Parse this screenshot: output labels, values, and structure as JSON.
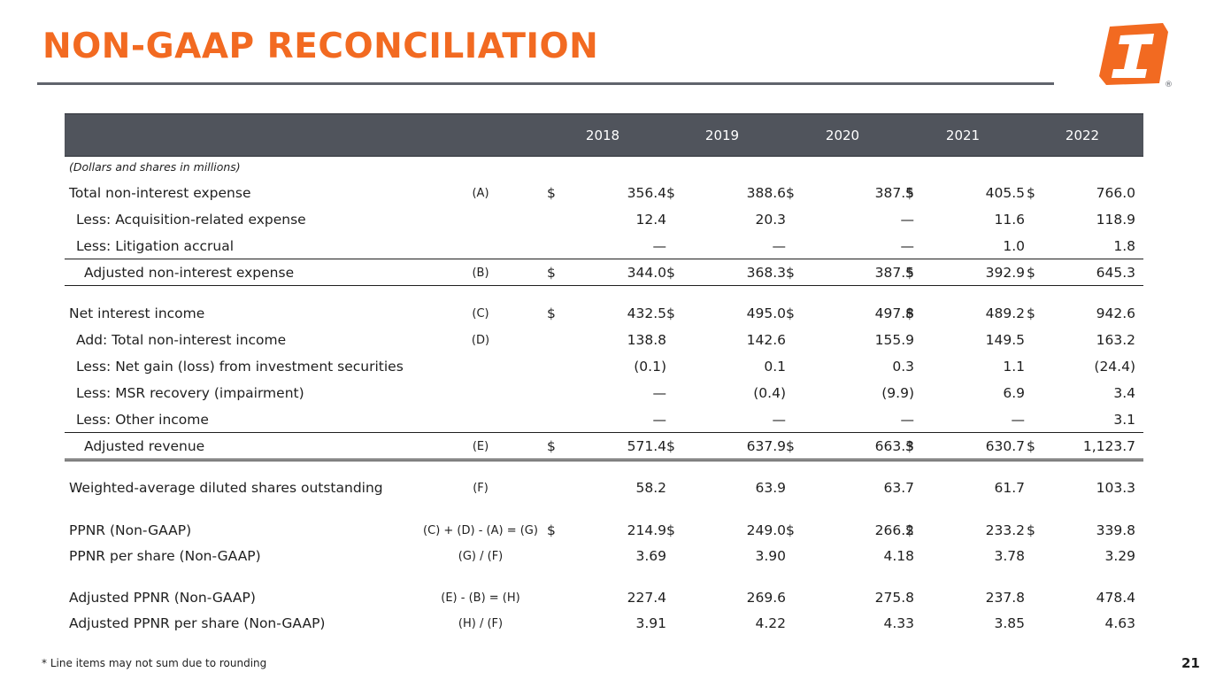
{
  "title": "NON-GAAP RECONCILIATION",
  "logo": {
    "icon": "company-logo-icon",
    "registered_mark": "®",
    "brand_color": "#f26a21"
  },
  "columns": [
    "2018",
    "2019",
    "2020",
    "2021",
    "2022"
  ],
  "units_note": "(Dollars and shares in millions)",
  "rows": [
    {
      "label": "Total non-interest expense",
      "indent": 0,
      "ref": "(A)",
      "dollar": true,
      "values": [
        "356.4",
        "388.6",
        "387.5",
        "405.5",
        "766.0"
      ]
    },
    {
      "label": "Less: Acquisition-related expense",
      "indent": 1,
      "ref": "",
      "dollar": false,
      "values": [
        "12.4",
        "20.3",
        "—",
        "11.6",
        "118.9"
      ]
    },
    {
      "label": "Less: Litigation accrual",
      "indent": 1,
      "ref": "",
      "dollar": false,
      "values": [
        "—",
        "—",
        "—",
        "1.0",
        "1.8"
      ]
    },
    {
      "label": "Adjusted non-interest expense",
      "indent": 2,
      "ref": "(B)",
      "dollar": true,
      "values": [
        "344.0",
        "368.3",
        "387.5",
        "392.9",
        "645.3"
      ]
    },
    {
      "label": "Net interest income",
      "indent": 0,
      "ref": "(C)",
      "dollar": true,
      "values": [
        "432.5",
        "495.0",
        "497.8",
        "489.2",
        "942.6"
      ]
    },
    {
      "label": "Add: Total non-interest income",
      "indent": 1,
      "ref": "(D)",
      "dollar": false,
      "values": [
        "138.8",
        "142.6",
        "155.9",
        "149.5",
        "163.2"
      ]
    },
    {
      "label": "Less: Net gain (loss) from investment securities",
      "indent": 1,
      "ref": "",
      "dollar": false,
      "values": [
        "(0.1)",
        "0.1",
        "0.3",
        "1.1",
        "(24.4)"
      ]
    },
    {
      "label": "Less: MSR recovery (impairment)",
      "indent": 1,
      "ref": "",
      "dollar": false,
      "values": [
        "—",
        "(0.4)",
        "(9.9)",
        "6.9",
        "3.4"
      ]
    },
    {
      "label": "Less: Other income",
      "indent": 1,
      "ref": "",
      "dollar": false,
      "values": [
        "—",
        "—",
        "—",
        "—",
        "3.1"
      ]
    },
    {
      "label": "Adjusted revenue",
      "indent": 2,
      "ref": "(E)",
      "dollar": true,
      "values": [
        "571.4",
        "637.9",
        "663.3",
        "630.7",
        "1,123.7"
      ]
    },
    {
      "label": "Weighted-average diluted shares outstanding",
      "indent": 0,
      "ref": "(F)",
      "dollar": false,
      "values": [
        "58.2",
        "63.9",
        "63.7",
        "61.7",
        "103.3"
      ]
    },
    {
      "label": "PPNR (Non-GAAP)",
      "indent": 0,
      "ref": "(C) + (D) - (A) = (G)",
      "dollar": true,
      "values": [
        "214.9",
        "249.0",
        "266.2",
        "233.2",
        "339.8"
      ]
    },
    {
      "label": "PPNR per share (Non-GAAP)",
      "indent": 0,
      "ref": "(G) / (F)",
      "dollar": false,
      "values": [
        "3.69",
        "3.90",
        "4.18",
        "3.78",
        "3.29"
      ]
    },
    {
      "label": "Adjusted PPNR (Non-GAAP)",
      "indent": 0,
      "ref": "(E) - (B) = (H)",
      "dollar": false,
      "values": [
        "227.4",
        "269.6",
        "275.8",
        "237.8",
        "478.4"
      ]
    },
    {
      "label": "Adjusted PPNR per share (Non-GAAP)",
      "indent": 0,
      "ref": "(H) / (F)",
      "dollar": false,
      "values": [
        "3.91",
        "4.22",
        "4.33",
        "3.85",
        "4.63"
      ]
    }
  ],
  "currency_symbol": "$",
  "footnote": "* Line items may not sum due to rounding",
  "page_number": "21"
}
